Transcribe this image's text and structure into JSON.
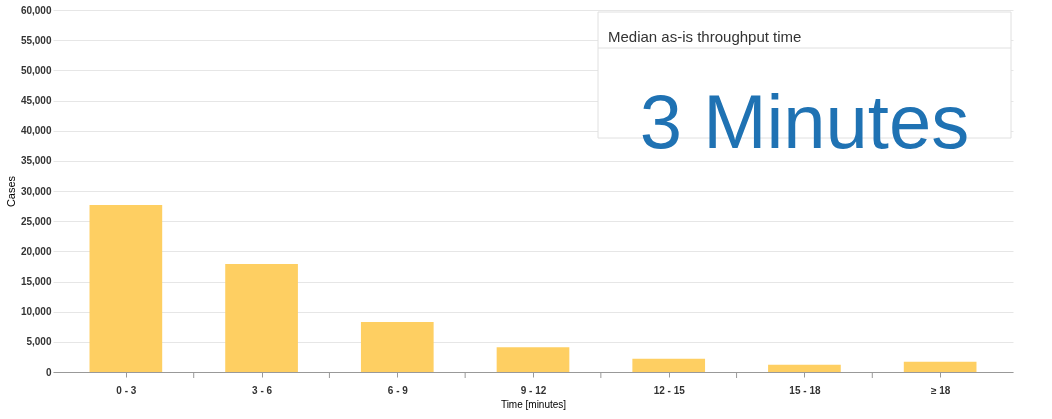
{
  "chart_data": {
    "type": "bar",
    "xlabel": "Time [minutes]",
    "ylabel": "Cases",
    "categories": [
      "0 - 3",
      "3 - 6",
      "6 - 9",
      "9 - 12",
      "12 - 15",
      "15 - 18",
      "≥ 18"
    ],
    "values": [
      27700,
      17900,
      8300,
      4100,
      2200,
      1200,
      1700
    ],
    "color": "#fecf62",
    "ylim": [
      0,
      60000
    ],
    "yticks": [
      0,
      {
        "value": 5000,
        "label": "5,000"
      },
      {
        "value": 10000,
        "label": "10,000"
      },
      {
        "value": 15000,
        "label": "15,000"
      },
      {
        "value": 20000,
        "label": "20,000"
      },
      {
        "value": 25000,
        "label": "25,000"
      },
      {
        "value": 30000,
        "label": "30,000"
      },
      {
        "value": 35000,
        "label": "35,000"
      },
      {
        "value": 40000,
        "label": "40,000"
      },
      {
        "value": 45000,
        "label": "45,000"
      },
      {
        "value": 50000,
        "label": "50,000"
      },
      {
        "value": 55000,
        "label": "55,000"
      },
      {
        "value": 60000,
        "label": "60,000"
      }
    ],
    "grid": "y",
    "annotations": [
      "Median as-is throughput time",
      "3 Minutes"
    ]
  }
}
